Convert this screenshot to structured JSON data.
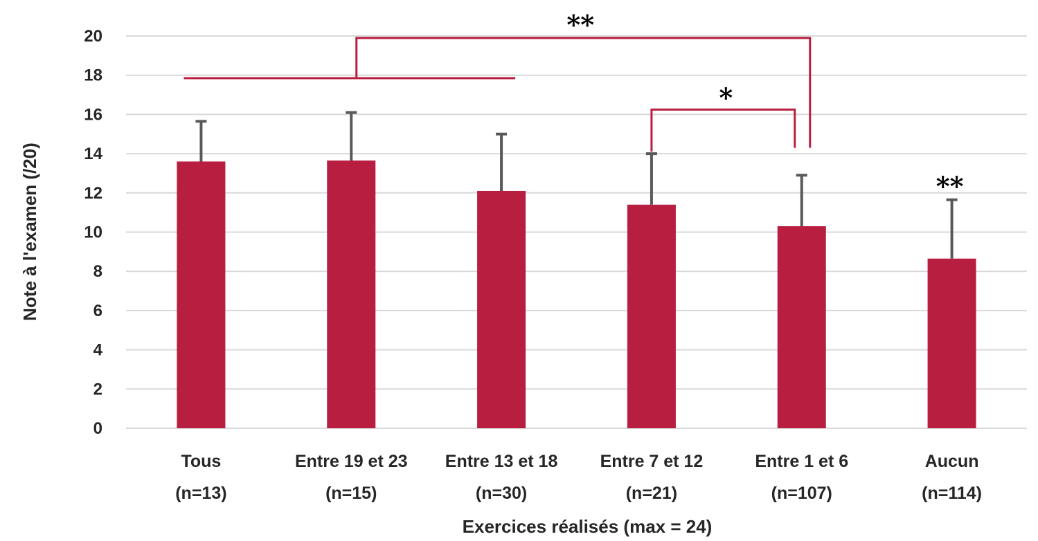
{
  "chart_data": {
    "type": "bar",
    "title": "",
    "xlabel": "Exercices réalisés (max = 24)",
    "ylabel": "Note à l'examen (/20)",
    "ylim": [
      0,
      20
    ],
    "yticks": [
      "0",
      "2",
      "4",
      "6",
      "8",
      "10",
      "12",
      "14",
      "16",
      "18",
      "20"
    ],
    "grid": true,
    "categories": [
      {
        "label": "Tous",
        "n": "(n=13)"
      },
      {
        "label": "Entre 19 et 23",
        "n": "(n=15)"
      },
      {
        "label": "Entre 13 et 18",
        "n": "(n=30)"
      },
      {
        "label": "Entre 7 et 12",
        "n": "(n=21)"
      },
      {
        "label": "Entre 1 et 6",
        "n": "(n=107)"
      },
      {
        "label": "Aucun",
        "n": "(n=114)"
      }
    ],
    "values": [
      13.6,
      13.65,
      12.1,
      11.4,
      10.3,
      8.65
    ],
    "error_upper": [
      2.05,
      2.45,
      2.9,
      2.6,
      2.6,
      3.0
    ],
    "colors": {
      "bar": "#b81e40",
      "bracket": "#b81e40",
      "error": "#595959",
      "grid": "#d9d9d9"
    },
    "annotations": [
      {
        "text": "**",
        "type": "bracket",
        "from_group": [
          0,
          2
        ],
        "to": 4
      },
      {
        "text": "*",
        "type": "bracket",
        "from": 3,
        "to": 4
      },
      {
        "text": "**",
        "type": "label",
        "over": 5
      }
    ]
  }
}
